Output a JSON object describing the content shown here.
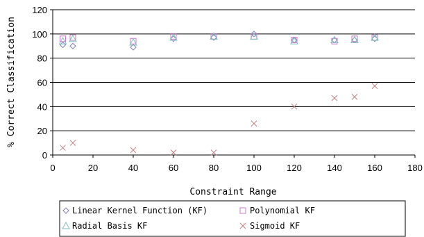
{
  "chart_data": {
    "type": "scatter",
    "title": "",
    "xlabel": "Constraint Range",
    "ylabel": "% Correct Classification",
    "xlim": [
      0,
      180
    ],
    "ylim": [
      0,
      120
    ],
    "xticks": [
      "0",
      "20",
      "40",
      "60",
      "80",
      "100",
      "120",
      "140",
      "160",
      "180"
    ],
    "yticks": [
      "0",
      "20",
      "40",
      "60",
      "80",
      "100",
      "120"
    ],
    "grid": "horizontal",
    "legend_position": "bottom",
    "series": [
      {
        "name": "Linear Kernel Function (KF)",
        "marker": "diamond",
        "color": "#7f7fbf",
        "points": [
          [
            5,
            91
          ],
          [
            10,
            90
          ],
          [
            40,
            89
          ],
          [
            60,
            96
          ],
          [
            80,
            97
          ],
          [
            100,
            100
          ],
          [
            120,
            95
          ],
          [
            140,
            95
          ],
          [
            150,
            95
          ],
          [
            160,
            96
          ]
        ]
      },
      {
        "name": "Polynomial KF",
        "marker": "square",
        "color": "#c878c8",
        "points": [
          [
            5,
            96
          ],
          [
            10,
            97
          ],
          [
            40,
            94
          ],
          [
            60,
            98
          ],
          [
            80,
            98
          ],
          [
            100,
            98
          ],
          [
            120,
            95
          ],
          [
            140,
            94
          ],
          [
            150,
            96
          ],
          [
            160,
            97
          ]
        ]
      },
      {
        "name": "Radial Basis KF",
        "marker": "triangle",
        "color": "#7fbfbf",
        "points": [
          [
            5,
            94
          ],
          [
            10,
            96
          ],
          [
            40,
            93
          ],
          [
            60,
            97
          ],
          [
            80,
            98
          ],
          [
            100,
            98
          ],
          [
            120,
            94
          ],
          [
            140,
            95
          ],
          [
            150,
            95
          ],
          [
            160,
            97
          ]
        ]
      },
      {
        "name": "Sigmoid KF",
        "marker": "cross",
        "color": "#c08080",
        "points": [
          [
            5,
            6
          ],
          [
            10,
            10
          ],
          [
            40,
            4
          ],
          [
            60,
            2
          ],
          [
            80,
            2
          ],
          [
            100,
            26
          ],
          [
            120,
            40
          ],
          [
            140,
            47
          ],
          [
            150,
            48
          ],
          [
            160,
            57
          ]
        ]
      }
    ]
  }
}
